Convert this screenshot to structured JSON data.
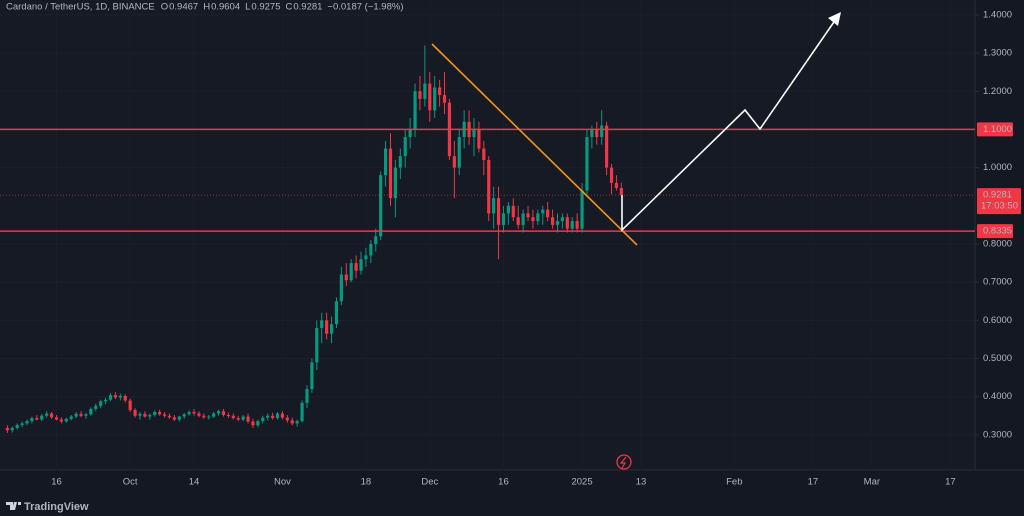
{
  "chart_data": {
    "type": "candlestick",
    "title": "Cardano / TetherUS, 1D, BINANCE",
    "legend_items": [
      {
        "label": "O",
        "value": 0.9467
      },
      {
        "label": "H",
        "value": 0.9604
      },
      {
        "label": "L",
        "value": 0.9275
      },
      {
        "label": "C",
        "value": 0.9281
      }
    ],
    "change": "−0.0187 (−1.98%)",
    "up_color": "#089981",
    "down_color": "#f23645",
    "ohlc": [
      [
        0.318,
        0.325,
        0.305,
        0.312
      ],
      [
        0.312,
        0.322,
        0.306,
        0.318
      ],
      [
        0.318,
        0.33,
        0.314,
        0.326
      ],
      [
        0.326,
        0.335,
        0.32,
        0.33
      ],
      [
        0.33,
        0.34,
        0.325,
        0.336
      ],
      [
        0.336,
        0.348,
        0.33,
        0.344
      ],
      [
        0.344,
        0.352,
        0.338,
        0.34
      ],
      [
        0.34,
        0.355,
        0.336,
        0.35
      ],
      [
        0.35,
        0.362,
        0.345,
        0.356
      ],
      [
        0.356,
        0.36,
        0.342,
        0.346
      ],
      [
        0.346,
        0.352,
        0.338,
        0.34
      ],
      [
        0.34,
        0.346,
        0.33,
        0.335
      ],
      [
        0.335,
        0.345,
        0.332,
        0.342
      ],
      [
        0.342,
        0.352,
        0.338,
        0.348
      ],
      [
        0.348,
        0.36,
        0.344,
        0.355
      ],
      [
        0.355,
        0.362,
        0.346,
        0.35
      ],
      [
        0.35,
        0.358,
        0.342,
        0.354
      ],
      [
        0.354,
        0.372,
        0.35,
        0.368
      ],
      [
        0.368,
        0.382,
        0.362,
        0.376
      ],
      [
        0.376,
        0.392,
        0.37,
        0.388
      ],
      [
        0.388,
        0.398,
        0.38,
        0.392
      ],
      [
        0.392,
        0.41,
        0.388,
        0.404
      ],
      [
        0.404,
        0.412,
        0.394,
        0.398
      ],
      [
        0.398,
        0.408,
        0.39,
        0.402
      ],
      [
        0.402,
        0.406,
        0.385,
        0.39
      ],
      [
        0.39,
        0.395,
        0.36,
        0.365
      ],
      [
        0.365,
        0.37,
        0.345,
        0.35
      ],
      [
        0.35,
        0.36,
        0.34,
        0.355
      ],
      [
        0.355,
        0.362,
        0.345,
        0.348
      ],
      [
        0.348,
        0.356,
        0.34,
        0.352
      ],
      [
        0.352,
        0.364,
        0.348,
        0.36
      ],
      [
        0.36,
        0.366,
        0.35,
        0.354
      ],
      [
        0.354,
        0.36,
        0.345,
        0.35
      ],
      [
        0.35,
        0.356,
        0.342,
        0.346
      ],
      [
        0.346,
        0.352,
        0.336,
        0.34
      ],
      [
        0.34,
        0.35,
        0.335,
        0.348
      ],
      [
        0.348,
        0.358,
        0.342,
        0.354
      ],
      [
        0.354,
        0.364,
        0.35,
        0.36
      ],
      [
        0.36,
        0.368,
        0.35,
        0.356
      ],
      [
        0.356,
        0.362,
        0.346,
        0.35
      ],
      [
        0.35,
        0.356,
        0.342,
        0.346
      ],
      [
        0.346,
        0.352,
        0.34,
        0.348
      ],
      [
        0.348,
        0.36,
        0.344,
        0.356
      ],
      [
        0.356,
        0.366,
        0.35,
        0.362
      ],
      [
        0.362,
        0.368,
        0.348,
        0.352
      ],
      [
        0.352,
        0.358,
        0.344,
        0.35
      ],
      [
        0.35,
        0.356,
        0.34,
        0.344
      ],
      [
        0.344,
        0.35,
        0.336,
        0.34
      ],
      [
        0.34,
        0.352,
        0.336,
        0.348
      ],
      [
        0.348,
        0.356,
        0.33,
        0.335
      ],
      [
        0.335,
        0.342,
        0.318,
        0.325
      ],
      [
        0.325,
        0.34,
        0.32,
        0.336
      ],
      [
        0.336,
        0.35,
        0.33,
        0.345
      ],
      [
        0.345,
        0.356,
        0.338,
        0.35
      ],
      [
        0.35,
        0.358,
        0.34,
        0.344
      ],
      [
        0.344,
        0.36,
        0.34,
        0.356
      ],
      [
        0.356,
        0.362,
        0.34,
        0.345
      ],
      [
        0.345,
        0.352,
        0.332,
        0.338
      ],
      [
        0.338,
        0.345,
        0.325,
        0.33
      ],
      [
        0.33,
        0.34,
        0.322,
        0.336
      ],
      [
        0.336,
        0.39,
        0.332,
        0.384
      ],
      [
        0.384,
        0.43,
        0.37,
        0.42
      ],
      [
        0.42,
        0.5,
        0.41,
        0.49
      ],
      [
        0.49,
        0.6,
        0.47,
        0.58
      ],
      [
        0.58,
        0.62,
        0.54,
        0.6
      ],
      [
        0.6,
        0.62,
        0.55,
        0.565
      ],
      [
        0.565,
        0.61,
        0.54,
        0.59
      ],
      [
        0.59,
        0.66,
        0.58,
        0.65
      ],
      [
        0.65,
        0.74,
        0.64,
        0.72
      ],
      [
        0.72,
        0.75,
        0.69,
        0.705
      ],
      [
        0.705,
        0.76,
        0.7,
        0.75
      ],
      [
        0.75,
        0.77,
        0.71,
        0.73
      ],
      [
        0.73,
        0.78,
        0.72,
        0.76
      ],
      [
        0.76,
        0.79,
        0.74,
        0.77
      ],
      [
        0.77,
        0.81,
        0.75,
        0.8
      ],
      [
        0.8,
        0.84,
        0.78,
        0.82
      ],
      [
        0.82,
        0.99,
        0.81,
        0.98
      ],
      [
        0.98,
        1.07,
        0.95,
        1.05
      ],
      [
        1.05,
        1.09,
        0.9,
        0.92
      ],
      [
        0.92,
        1.02,
        0.87,
        1.0
      ],
      [
        1.0,
        1.05,
        0.97,
        1.03
      ],
      [
        1.03,
        1.1,
        1.0,
        1.08
      ],
      [
        1.08,
        1.13,
        1.05,
        1.1
      ],
      [
        1.1,
        1.22,
        1.08,
        1.2
      ],
      [
        1.2,
        1.24,
        1.15,
        1.18
      ],
      [
        1.18,
        1.32,
        1.16,
        1.22
      ],
      [
        1.22,
        1.25,
        1.12,
        1.15
      ],
      [
        1.15,
        1.24,
        1.13,
        1.21
      ],
      [
        1.21,
        1.23,
        1.16,
        1.19
      ],
      [
        1.19,
        1.25,
        1.14,
        1.17
      ],
      [
        1.17,
        1.18,
        1.02,
        1.03
      ],
      [
        1.03,
        1.07,
        0.92,
        1.0
      ],
      [
        1.0,
        1.1,
        0.98,
        1.08
      ],
      [
        1.08,
        1.15,
        1.05,
        1.12
      ],
      [
        1.12,
        1.15,
        1.06,
        1.08
      ],
      [
        1.08,
        1.13,
        1.03,
        1.1
      ],
      [
        1.1,
        1.12,
        1.04,
        1.05
      ],
      [
        1.05,
        1.07,
        0.98,
        1.02
      ],
      [
        1.02,
        1.03,
        0.86,
        0.88
      ],
      [
        0.88,
        0.95,
        0.84,
        0.92
      ],
      [
        0.92,
        0.95,
        0.76,
        0.85
      ],
      [
        0.85,
        0.9,
        0.83,
        0.88
      ],
      [
        0.88,
        0.91,
        0.85,
        0.9
      ],
      [
        0.9,
        0.92,
        0.86,
        0.87
      ],
      [
        0.87,
        0.9,
        0.84,
        0.85
      ],
      [
        0.85,
        0.89,
        0.83,
        0.88
      ],
      [
        0.88,
        0.9,
        0.86,
        0.87
      ],
      [
        0.87,
        0.89,
        0.84,
        0.86
      ],
      [
        0.86,
        0.89,
        0.85,
        0.88
      ],
      [
        0.88,
        0.9,
        0.85,
        0.89
      ],
      [
        0.89,
        0.91,
        0.86,
        0.87
      ],
      [
        0.87,
        0.89,
        0.84,
        0.85
      ],
      [
        0.85,
        0.88,
        0.83,
        0.86
      ],
      [
        0.86,
        0.88,
        0.84,
        0.87
      ],
      [
        0.87,
        0.88,
        0.83,
        0.84
      ],
      [
        0.84,
        0.87,
        0.83,
        0.86
      ],
      [
        0.86,
        0.88,
        0.83,
        0.84
      ],
      [
        0.84,
        0.96,
        0.83,
        0.94
      ],
      [
        0.94,
        1.1,
        0.93,
        1.08
      ],
      [
        1.08,
        1.11,
        1.05,
        1.1
      ],
      [
        1.1,
        1.12,
        1.06,
        1.08
      ],
      [
        1.08,
        1.15,
        1.06,
        1.11
      ],
      [
        1.11,
        1.12,
        0.98,
        1.0
      ],
      [
        1.0,
        1.01,
        0.93,
        0.96
      ],
      [
        0.96,
        0.98,
        0.94,
        0.9467
      ],
      [
        0.9467,
        0.9604,
        0.9275,
        0.9281
      ]
    ],
    "xlim": [
      -1.5,
      197
    ],
    "xticks": [
      {
        "value": 10,
        "label": "16"
      },
      {
        "value": 25,
        "label": "Oct"
      },
      {
        "value": 38,
        "label": "14"
      },
      {
        "value": 56,
        "label": "Nov"
      },
      {
        "value": 73,
        "label": "18"
      },
      {
        "value": 86,
        "label": "Dec"
      },
      {
        "value": 101,
        "label": "16"
      },
      {
        "value": 117,
        "label": "2025"
      },
      {
        "value": 129,
        "label": "13"
      },
      {
        "value": 148,
        "label": "Feb"
      },
      {
        "value": 164,
        "label": "17"
      },
      {
        "value": 176,
        "label": "Mar"
      },
      {
        "value": 192,
        "label": "17"
      }
    ],
    "ylim": [
      0.208,
      1.439
    ],
    "yticks": [
      {
        "value": 1.4,
        "label": "1.4000"
      },
      {
        "value": 1.3,
        "label": "1.3000"
      },
      {
        "value": 1.2,
        "label": "1.2000"
      },
      {
        "value": 1.0,
        "label": "1.0000"
      },
      {
        "value": 0.8,
        "label": "0.8000"
      },
      {
        "value": 0.7,
        "label": "0.7000"
      },
      {
        "value": 0.6,
        "label": "0.6000"
      },
      {
        "value": 0.5,
        "label": "0.5000"
      },
      {
        "value": 0.4,
        "label": "0.4000"
      },
      {
        "value": 0.3,
        "label": "0.3000"
      }
    ],
    "levels": [
      {
        "value": 1.1,
        "label": "1.1000",
        "color": "#f23645"
      },
      {
        "value": 0.8335,
        "label": "0.8335",
        "color": "#f23645"
      }
    ],
    "last_price": {
      "value": 0.9281,
      "countdown": "17:03:50"
    },
    "brand": "TradingView"
  }
}
